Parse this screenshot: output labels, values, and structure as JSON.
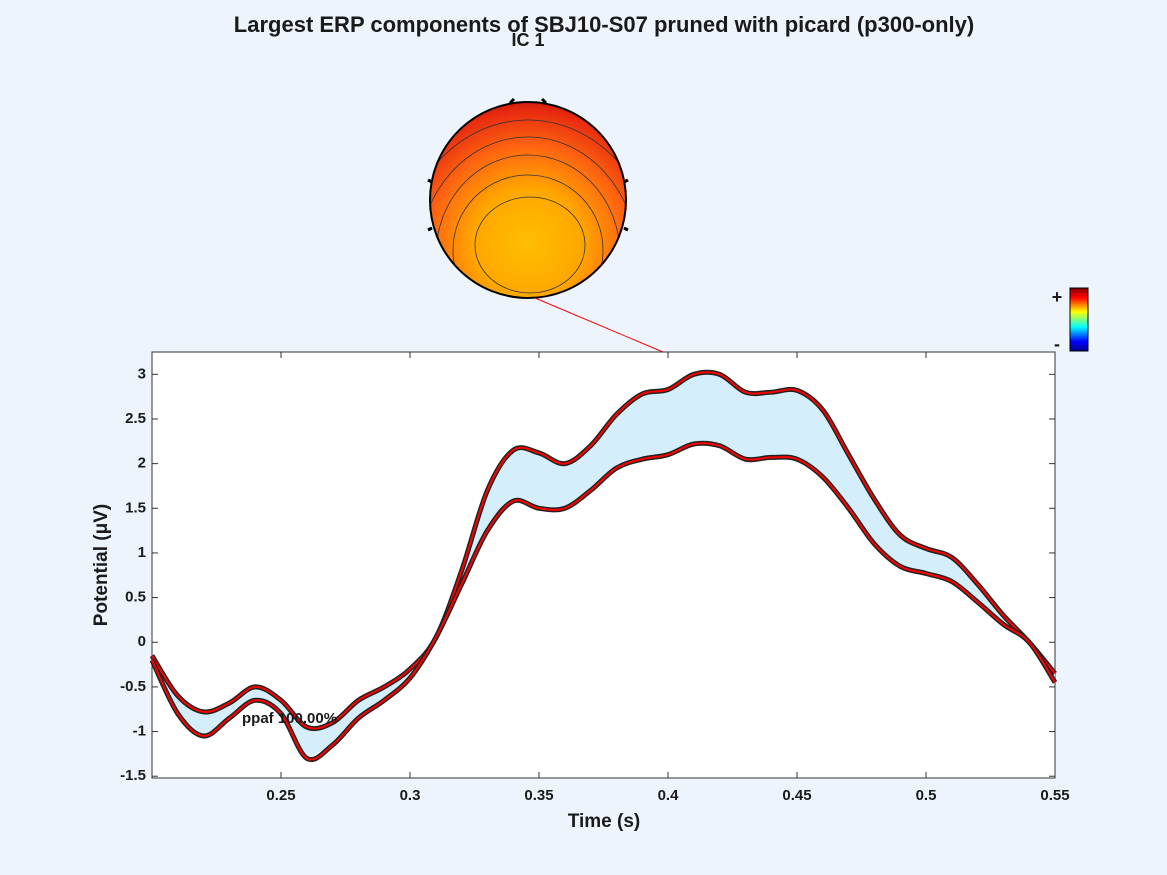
{
  "chart_data": {
    "type": "line",
    "title": "Largest ERP components of SBJ10-S07 pruned with picard (p300-only)",
    "x_label": "Time (s)",
    "y_label": "Potential (μV)",
    "component_label": "IC 1",
    "annotation": "ppaf 100.00%",
    "colorbar_labels": [
      "+",
      "-"
    ],
    "x": [
      0.2,
      0.21,
      0.22,
      0.23,
      0.24,
      0.25,
      0.26,
      0.27,
      0.28,
      0.29,
      0.3,
      0.31,
      0.32,
      0.33,
      0.34,
      0.35,
      0.36,
      0.37,
      0.38,
      0.39,
      0.4,
      0.41,
      0.42,
      0.43,
      0.44,
      0.45,
      0.46,
      0.47,
      0.48,
      0.49,
      0.5,
      0.51,
      0.52,
      0.53,
      0.54,
      0.55
    ],
    "series": [
      {
        "color": "#ff0000",
        "values": [
          -0.15,
          -0.6,
          -0.78,
          -0.68,
          -0.5,
          -0.65,
          -0.95,
          -0.9,
          -0.65,
          -0.5,
          -0.3,
          0.05,
          0.8,
          1.7,
          2.15,
          2.12,
          2.0,
          2.2,
          2.55,
          2.78,
          2.83,
          3.0,
          3.0,
          2.8,
          2.8,
          2.82,
          2.6,
          2.1,
          1.6,
          1.2,
          1.05,
          0.95,
          0.65,
          0.3,
          0.0,
          -0.35
        ]
      },
      {
        "color": "#ff0000",
        "values": [
          -0.2,
          -0.8,
          -1.05,
          -0.85,
          -0.65,
          -0.8,
          -1.3,
          -1.15,
          -0.85,
          -0.65,
          -0.4,
          0.05,
          0.65,
          1.25,
          1.58,
          1.5,
          1.5,
          1.7,
          1.95,
          2.05,
          2.1,
          2.22,
          2.2,
          2.05,
          2.07,
          2.05,
          1.85,
          1.5,
          1.1,
          0.85,
          0.77,
          0.68,
          0.45,
          0.2,
          0.0,
          -0.45
        ]
      }
    ],
    "fill_color": "#d4eefb",
    "xlim": [
      0.2,
      0.55
    ],
    "ylim": [
      -1.52,
      3.25
    ],
    "xticks": [
      0.25,
      0.3,
      0.35,
      0.4,
      0.45,
      0.5,
      0.55
    ],
    "yticks": [
      -1.5,
      -1,
      -0.5,
      0,
      0.5,
      1,
      1.5,
      2,
      2.5,
      3
    ]
  }
}
